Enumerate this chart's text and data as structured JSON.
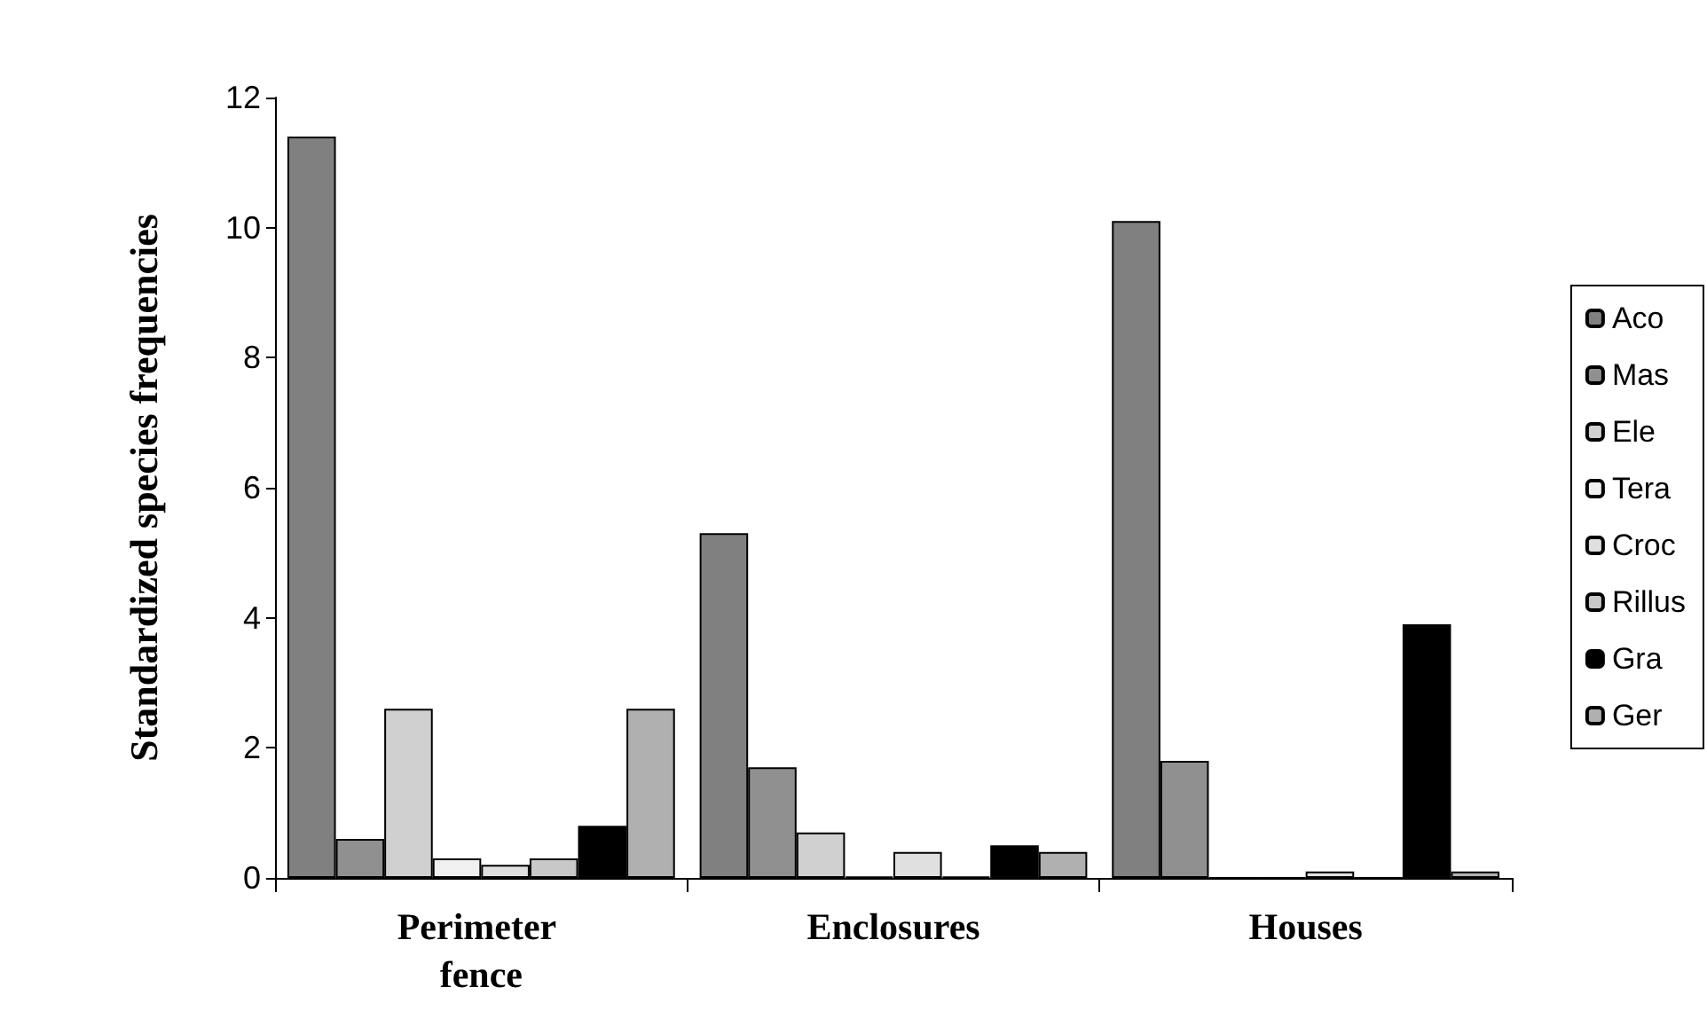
{
  "chart_data": {
    "type": "bar",
    "ylabel": "Standardized species frequencies",
    "categories": [
      "Perimeter fence",
      "Enclosures",
      "Houses"
    ],
    "series": [
      {
        "name": "Aco",
        "color": "#808080",
        "values": [
          11.4,
          5.3,
          10.1
        ]
      },
      {
        "name": "Mas",
        "color": "#909090",
        "values": [
          0.6,
          1.7,
          1.8
        ]
      },
      {
        "name": "Ele",
        "color": "#d0d0d0",
        "values": [
          2.6,
          0.7,
          0
        ]
      },
      {
        "name": "Tera",
        "color": "#f0f0f0",
        "values": [
          0.3,
          0.02,
          0
        ]
      },
      {
        "name": "Croc",
        "color": "#e0e0e0",
        "values": [
          0.2,
          0.4,
          0.1
        ]
      },
      {
        "name": "Rillus",
        "color": "#c8c8c8",
        "values": [
          0.3,
          0.02,
          0
        ]
      },
      {
        "name": "Gra",
        "color": "#000000",
        "values": [
          0.8,
          0.5,
          3.9
        ]
      },
      {
        "name": "Ger",
        "color": "#b0b0b0",
        "values": [
          2.6,
          0.4,
          0.1
        ]
      }
    ],
    "ylim": [
      0,
      12
    ],
    "yticks": [
      0,
      2,
      4,
      6,
      8,
      10,
      12
    ],
    "grid": false,
    "legend": "right"
  }
}
